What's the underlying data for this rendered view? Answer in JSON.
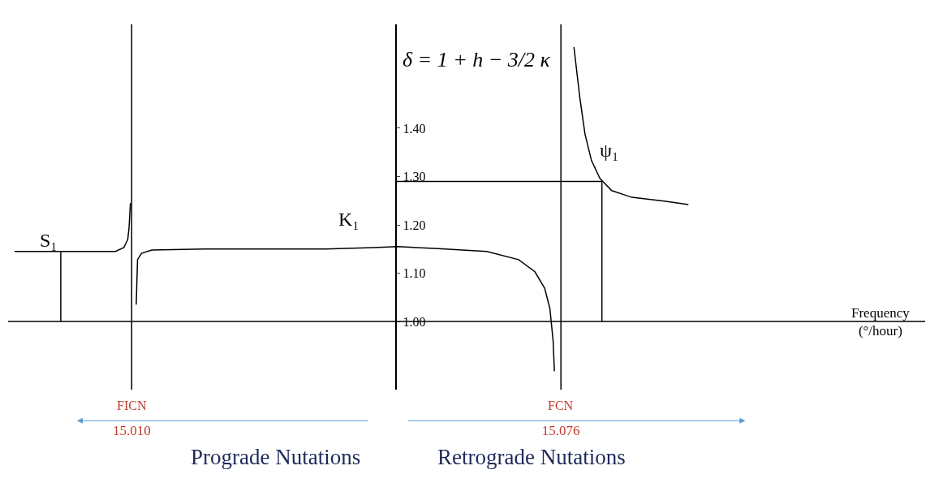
{
  "chart_data": {
    "type": "line",
    "ylabel": "δ = 1 + h − 3/2 κ",
    "xlabel": "Frequency (°/hour)",
    "xlim": [
      14.991,
      15.132
    ],
    "ylim": [
      0.859,
      1.615
    ],
    "xticks": [
      {
        "value": 15.01,
        "label": "15.010"
      },
      {
        "value": 15.076,
        "label": "15.076"
      }
    ],
    "yticks": [
      {
        "value": 1.0,
        "label": "1.00"
      },
      {
        "value": 1.1,
        "label": "1.10"
      },
      {
        "value": 1.2,
        "label": "1.20"
      },
      {
        "value": 1.3,
        "label": "1.30"
      },
      {
        "value": 1.4,
        "label": "1.40"
      }
    ],
    "marker": "none",
    "line_style": "solid",
    "series": [
      {
        "color": "#000000",
        "x": [
          14.992,
          15.0075,
          15.0088,
          15.0094,
          15.0096,
          15.0098,
          null,
          15.0107,
          15.0109,
          15.0115,
          15.0131,
          15.0212,
          15.0398,
          15.0472,
          15.0509,
          15.0571,
          15.0646,
          15.0695,
          15.072,
          15.0735,
          15.0743,
          15.0748,
          15.075,
          null,
          15.078,
          15.0789,
          15.0797,
          15.0807,
          15.082,
          15.0838,
          15.0869,
          15.0919,
          15.0956
        ],
        "values": [
          1.145,
          1.145,
          1.153,
          1.17,
          1.195,
          1.245,
          null,
          1.035,
          1.128,
          1.141,
          1.148,
          1.15,
          1.15,
          1.153,
          1.155,
          1.151,
          1.145,
          1.128,
          1.103,
          1.069,
          1.027,
          0.96,
          0.897,
          null,
          1.568,
          1.464,
          1.388,
          1.333,
          1.296,
          1.271,
          1.257,
          1.249,
          1.242
        ]
      },
      {
        "color": "#000000",
        "x": [
          14.9991,
          14.9991
        ],
        "values": [
          1.0,
          1.145
        ]
      },
      {
        "color": "#000000",
        "x": [
          15.0506,
          15.0823,
          15.0823
        ],
        "values": [
          1.29,
          1.29,
          1.0
        ]
      }
    ],
    "ref_lines": [
      {
        "axis": "y",
        "value": 1.0,
        "color": "#000000"
      },
      {
        "axis": "x",
        "value": 15.0506,
        "color": "#000000"
      },
      {
        "axis": "x",
        "value": 15.01,
        "label": "FICN",
        "color": "#000000"
      },
      {
        "axis": "x",
        "value": 15.076,
        "label": "FCN",
        "color": "#000000"
      }
    ],
    "annotations": [
      "S₁",
      "K₁",
      "ψ₁",
      "Prograde Nutations",
      "Retrograde Nutations"
    ]
  }
}
